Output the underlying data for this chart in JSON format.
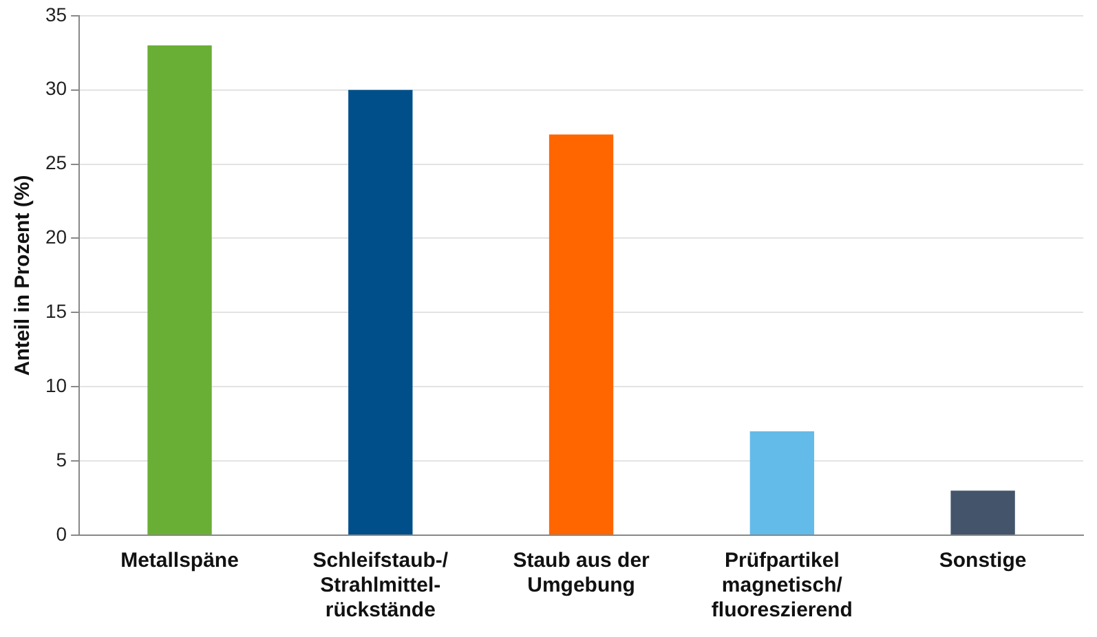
{
  "chart_data": {
    "type": "bar",
    "ylabel": "Anteil in Prozent (%)",
    "categories": [
      "Metallspäne",
      "Schleifstaub-/\nStrahlmittel-\nrückstände",
      "Staub aus der\nUmgebung",
      "Prüfpartikel\nmagnetisch/\nfluoreszierend",
      "Sonstige"
    ],
    "values": [
      33,
      30,
      27,
      7,
      3
    ],
    "colors": [
      "#6aaf35",
      "#004f8a",
      "#ff6600",
      "#63bbe9",
      "#44546a"
    ],
    "ylim": [
      0,
      35
    ],
    "yticks": [
      0,
      5,
      10,
      15,
      20,
      25,
      30,
      35
    ],
    "grid": "y",
    "legend": false
  }
}
